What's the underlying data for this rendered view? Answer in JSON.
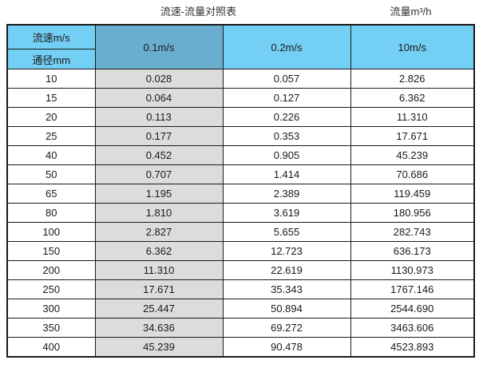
{
  "page": {
    "title_left": "流速-流量对照表",
    "title_right": "流量m³/h"
  },
  "table": {
    "corner_top": "流速m/s",
    "corner_bottom": "通径mm",
    "velocity_headers": [
      "0.1m/s",
      "0.2m/s",
      "10m/s"
    ],
    "rows": [
      [
        "10",
        "0.028",
        "0.057",
        "2.826"
      ],
      [
        "15",
        "0.064",
        "0.127",
        "6.362"
      ],
      [
        "20",
        "0.113",
        "0.226",
        "11.310"
      ],
      [
        "25",
        "0.177",
        "0.353",
        "17.671"
      ],
      [
        "40",
        "0.452",
        "0.905",
        "45.239"
      ],
      [
        "50",
        "0.707",
        "1.414",
        "70.686"
      ],
      [
        "65",
        "1.195",
        "2.389",
        "119.459"
      ],
      [
        "80",
        "1.810",
        "3.619",
        "180.956"
      ],
      [
        "100",
        "2.827",
        "5.655",
        "282.743"
      ],
      [
        "150",
        "6.362",
        "12.723",
        "636.173"
      ],
      [
        "200",
        "11.310",
        "22.619",
        "1130.973"
      ],
      [
        "250",
        "17.671",
        "35.343",
        "1767.146"
      ],
      [
        "300",
        "25.447",
        "50.894",
        "2544.690"
      ],
      [
        "350",
        "34.636",
        "69.272",
        "3463.606"
      ],
      [
        "400",
        "45.239",
        "90.478",
        "4523.893"
      ]
    ]
  },
  "colors": {
    "header_light_blue": "#74cff4",
    "header_dark_blue": "#69aecf",
    "column_grey": "#dcdcdc",
    "border_black": "#1a1a1a",
    "text": "#1a1a1a"
  },
  "chart_data": {
    "type": "table",
    "title": "流速-流量对照表",
    "value_unit_label": "流量m³/h",
    "row_axis_label": "通径mm",
    "column_axis_label": "流速m/s",
    "columns": [
      "0.1m/s",
      "0.2m/s",
      "10m/s"
    ],
    "diameters_mm": [
      10,
      15,
      20,
      25,
      40,
      50,
      65,
      80,
      100,
      150,
      200,
      250,
      300,
      350,
      400
    ],
    "series": [
      {
        "name": "0.1m/s",
        "values": [
          0.028,
          0.064,
          0.113,
          0.177,
          0.452,
          0.707,
          1.195,
          1.81,
          2.827,
          6.362,
          11.31,
          17.671,
          25.447,
          34.636,
          45.239
        ]
      },
      {
        "name": "0.2m/s",
        "values": [
          0.057,
          0.127,
          0.226,
          0.353,
          0.905,
          1.414,
          2.389,
          3.619,
          5.655,
          12.723,
          22.619,
          35.343,
          50.894,
          69.272,
          90.478
        ]
      },
      {
        "name": "10m/s",
        "values": [
          2.826,
          6.362,
          11.31,
          17.671,
          45.239,
          70.686,
          119.459,
          180.956,
          282.743,
          636.173,
          1130.973,
          1767.146,
          2544.69,
          3463.606,
          4523.893
        ]
      }
    ]
  }
}
